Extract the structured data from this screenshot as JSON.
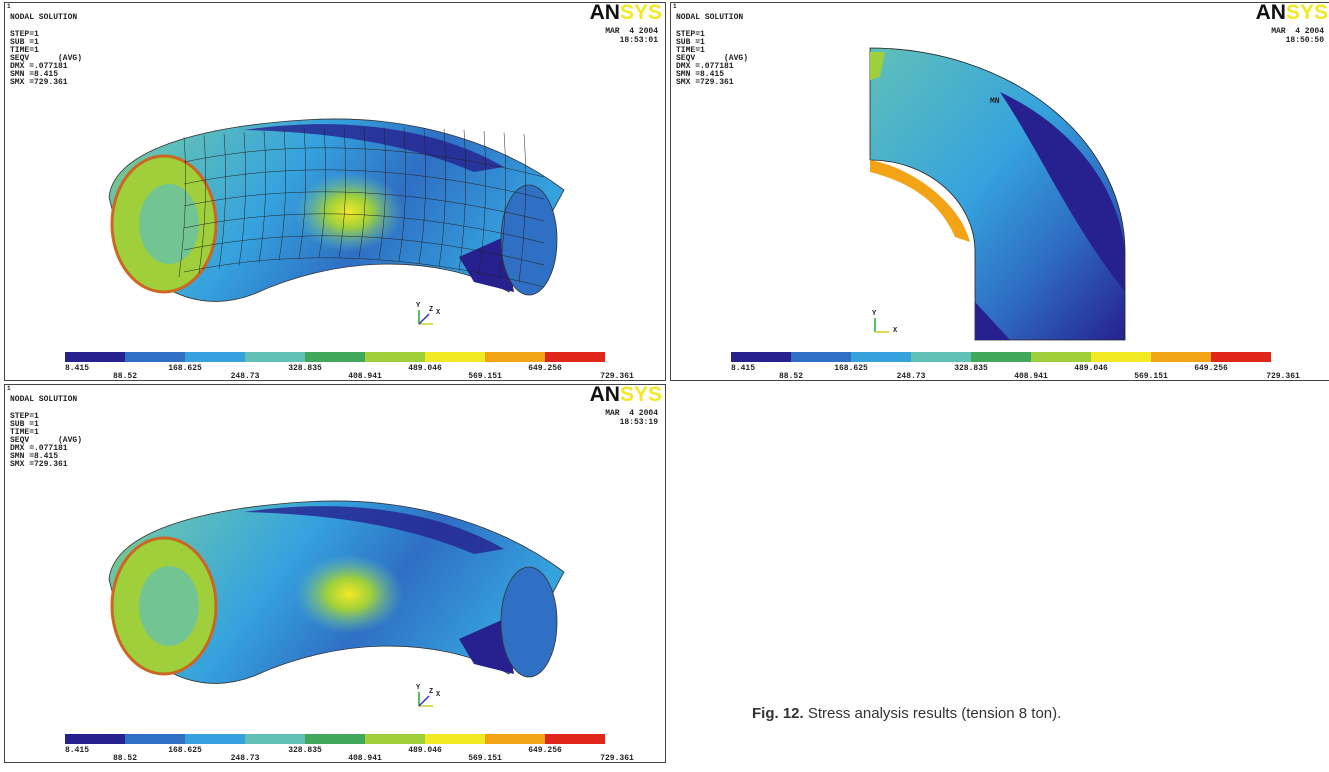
{
  "shared": {
    "window_number": "1",
    "title": "NODAL SOLUTION",
    "info": [
      "STEP=1",
      "SUB =1",
      "TIME=1",
      "SEQV      (AVG)",
      "DMX =.077181",
      "SMN =8.415",
      "SMX =729.361"
    ],
    "logo_dark": "AN",
    "logo_light": "SYS",
    "date": "MAR  4 2004",
    "legend_labels": [
      "8.415",
      "88.52",
      "168.625",
      "248.73",
      "328.835",
      "408.941",
      "489.046",
      "569.151",
      "649.256",
      "729.361"
    ]
  },
  "panels": [
    {
      "time": "18:53:01",
      "triad": [
        "Y",
        "Z",
        "X"
      ]
    },
    {
      "time": "18:50:50",
      "triad": [
        "Y",
        "X"
      ],
      "annotation": "MN"
    },
    {
      "time": "18:53:19",
      "triad": [
        "Y",
        "Z",
        "X"
      ]
    }
  ],
  "caption": {
    "label": "Fig. 12.",
    "text": "Stress analysis results (tension 8 ton)."
  }
}
